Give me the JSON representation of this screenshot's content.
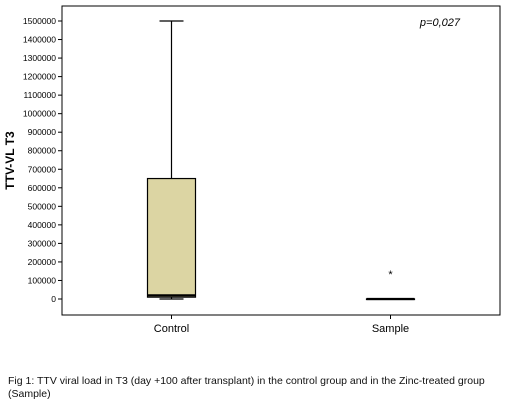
{
  "chart_data": {
    "type": "box",
    "ylabel": "TTV-VL T3",
    "annotation": "p=0,027",
    "ylim": [
      0,
      1500000
    ],
    "yticks": [
      0,
      100000,
      200000,
      300000,
      400000,
      500000,
      600000,
      700000,
      800000,
      900000,
      1000000,
      1100000,
      1200000,
      1300000,
      1400000,
      1500000
    ],
    "categories": [
      "Control",
      "Sample"
    ],
    "boxes": [
      {
        "category": "Control",
        "whisker_low": 0,
        "q1": 10000,
        "median": 20000,
        "q3": 650000,
        "whisker_high": 1500000,
        "outliers": []
      },
      {
        "category": "Sample",
        "whisker_low": 0,
        "q1": 0,
        "median": 0,
        "q3": 0,
        "whisker_high": 0,
        "outliers": [
          {
            "value": 140000,
            "marker": "*"
          }
        ]
      }
    ],
    "colors": {
      "box_fill": "#dcd5a3",
      "frame": "#000000",
      "plot_bg": "#ffffff"
    }
  },
  "caption": "Fig 1: TTV viral load in T3 (day +100 after transplant) in the control group and in the Zinc-treated group (Sample)"
}
